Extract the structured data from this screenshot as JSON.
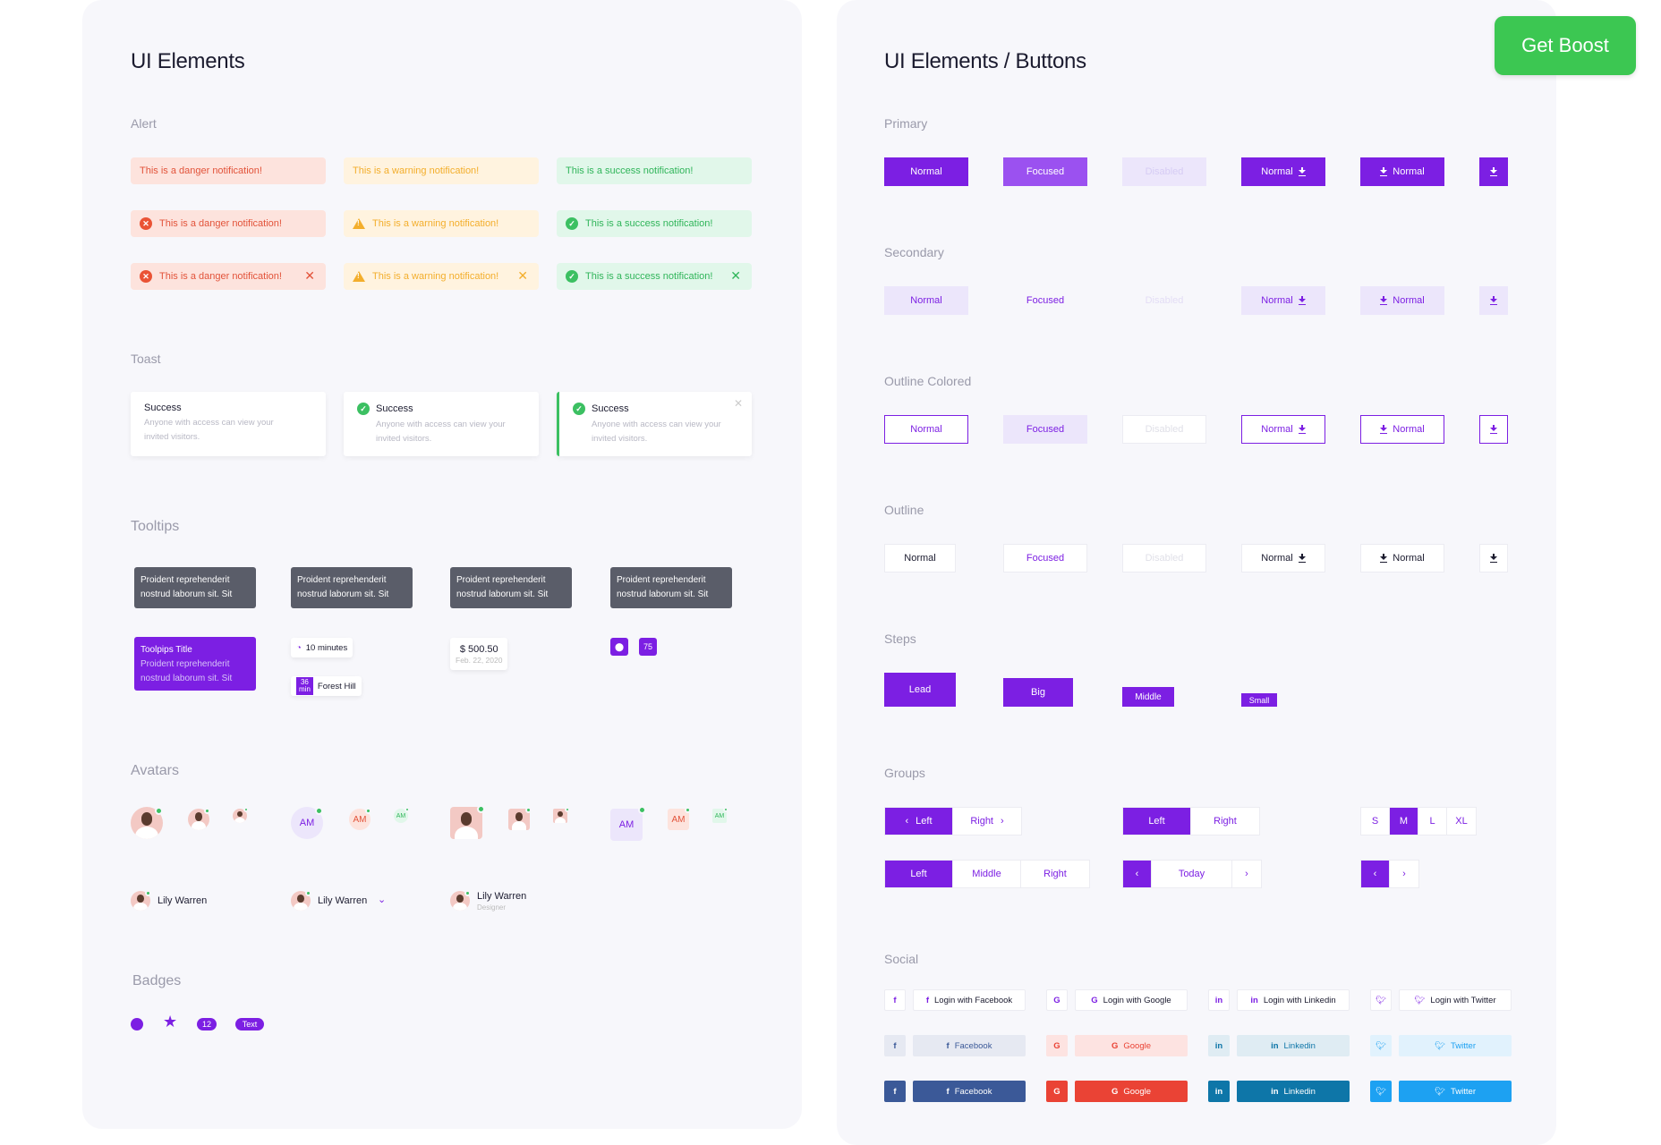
{
  "left": {
    "title": "UI Elements",
    "alert_title": "Alert",
    "alert_danger": "This is a danger notification!",
    "alert_warning": "This is a warning notification!",
    "alert_success": "This is a success notification!",
    "toast_title": "Toast",
    "toast_head": "Success",
    "toast_body_1": "Anyone with access can view your",
    "toast_body_2": "invited visitors.",
    "tooltips_title": "Tooltips",
    "tip_line1": "Proident reprehenderit",
    "tip_line2": "nostrud laborum sit. Sit",
    "tip_title": "Toolpips Title",
    "tip_minutes": "10 minutes",
    "tip_min_num": "36",
    "tip_min_unit": "min",
    "tip_place": "Forest Hill",
    "tip_price": "$ 500.50",
    "tip_date": "Feb. 22, 2020",
    "tip_count": "75",
    "avatars_title": "Avatars",
    "avatar_initials": "AM",
    "avatar_name": "Lily Warren",
    "avatar_role": "Designer",
    "badges_title": "Badges",
    "badge_num": "12",
    "badge_text": "Text"
  },
  "right": {
    "title": "UI Elements / Buttons",
    "primary": "Primary",
    "secondary": "Secondary",
    "outline_colored": "Outline Colored",
    "outline": "Outline",
    "normal": "Normal",
    "focused": "Focused",
    "disabled": "Disabled",
    "steps": "Steps",
    "lead": "Lead",
    "big": "Big",
    "middle": "Middle",
    "small": "Small",
    "groups": "Groups",
    "left": "Left",
    "right": "Right",
    "mid": "Middle",
    "today": "Today",
    "size_s": "S",
    "size_m": "M",
    "size_l": "L",
    "size_xl": "XL",
    "social": "Social",
    "login_facebook": "Login with Facebook",
    "login_google": "Login with Google",
    "login_linkedin": "Login with Linkedin",
    "login_twitter": "Login with Twitter",
    "facebook": "Facebook",
    "google": "Google",
    "linkedin": "Linkedin",
    "twitter": "Twitter"
  },
  "boost": "Get Boost",
  "colors": {
    "accent": "#7c1fe3",
    "facebook": "#3b5998",
    "google": "#ea4335",
    "linkedin": "#0e76a8",
    "twitter": "#1da1f2",
    "boost": "#3cc752"
  }
}
